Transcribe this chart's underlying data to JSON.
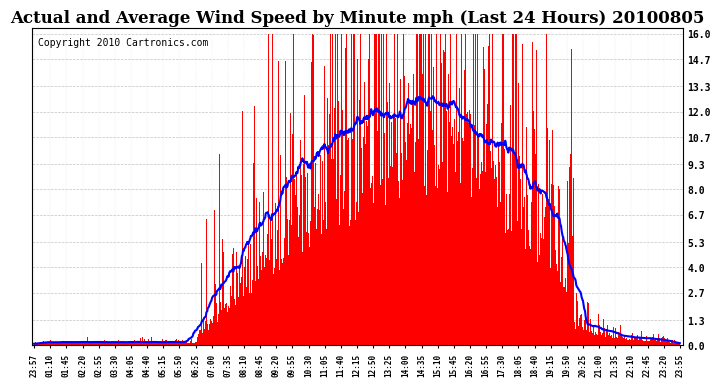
{
  "title": "Actual and Average Wind Speed by Minute mph (Last 24 Hours) 20100805",
  "copyright": "Copyright 2010 Cartronics.com",
  "yticks": [
    0.0,
    1.3,
    2.7,
    4.0,
    5.3,
    6.7,
    8.0,
    9.3,
    10.7,
    12.0,
    13.3,
    14.7,
    16.0
  ],
  "ymax": 16.0,
  "ymin": 0.0,
  "bar_color": "#ff0000",
  "line_color": "#0000ff",
  "background_color": "#ffffff",
  "grid_color": "#aaaaaa",
  "title_fontsize": 12,
  "copyright_fontsize": 7,
  "x_tick_interval": 30,
  "xtick_labels": [
    "23:57",
    "01:10",
    "01:45",
    "02:20",
    "02:55",
    "03:30",
    "04:05",
    "04:40",
    "05:15",
    "05:50",
    "06:25",
    "07:00",
    "07:35",
    "08:10",
    "08:45",
    "09:20",
    "09:55",
    "10:30",
    "11:05",
    "11:40",
    "12:15",
    "12:50",
    "13:25",
    "14:00",
    "14:35",
    "15:10",
    "15:45",
    "16:20",
    "16:55",
    "17:30",
    "18:05",
    "18:40",
    "19:15",
    "19:50",
    "20:25",
    "21:00",
    "21:35",
    "22:10",
    "22:45",
    "23:20",
    "23:55"
  ]
}
